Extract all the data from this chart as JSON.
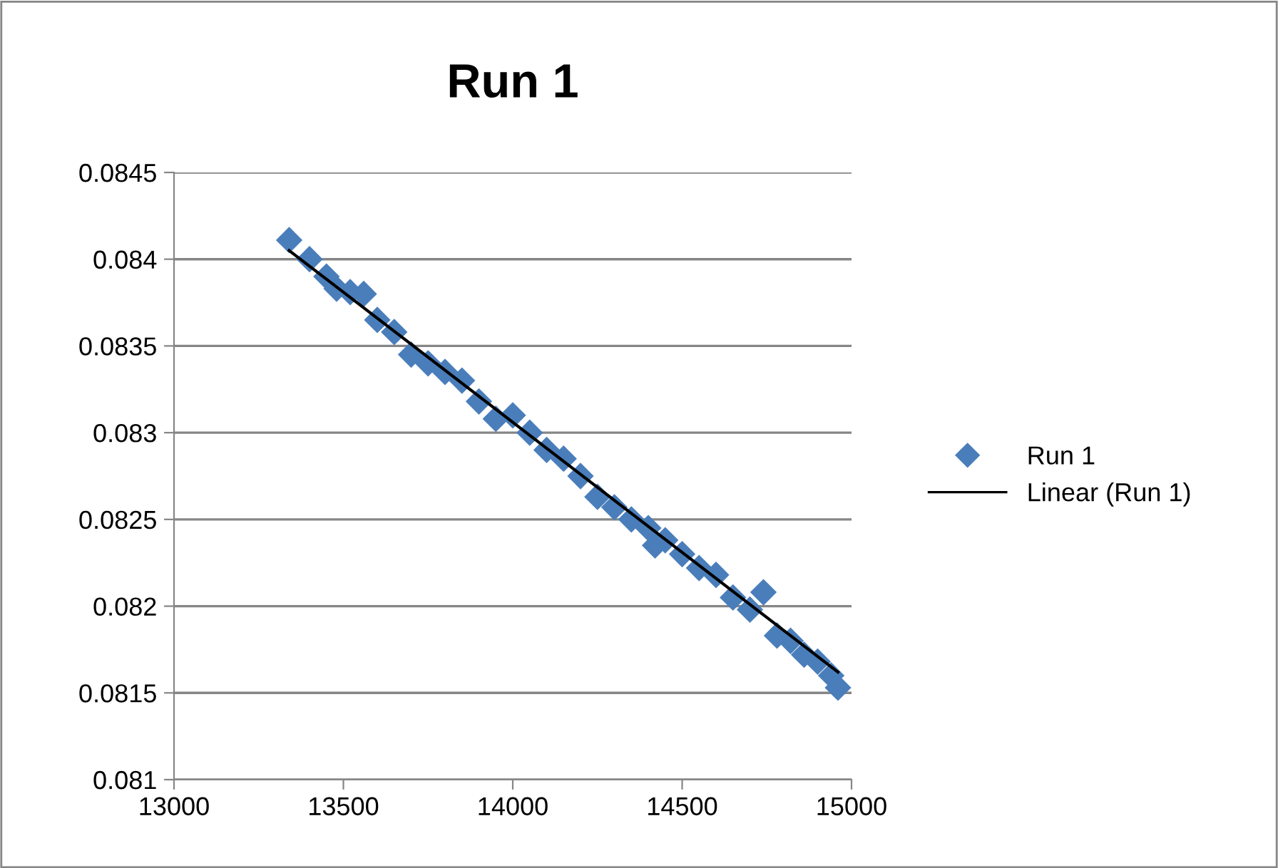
{
  "chart_data": {
    "type": "scatter",
    "title": "Run 1",
    "legend": "right",
    "grid": "y",
    "xlim": [
      13000,
      15000
    ],
    "xticks": [
      13000,
      13500,
      14000,
      14500,
      15000
    ],
    "ylim": [
      0.081,
      0.0845
    ],
    "yticks": [
      0.081,
      0.0815,
      0.082,
      0.0825,
      0.083,
      0.0835,
      0.084,
      0.0845
    ],
    "series": [
      {
        "name": "Run 1",
        "marker": "diamond",
        "color": "#4a7ebb",
        "x": [
          13340,
          13400,
          13450,
          13480,
          13520,
          13560,
          13600,
          13650,
          13700,
          13750,
          13800,
          13850,
          13900,
          13950,
          14000,
          14050,
          14100,
          14150,
          14200,
          14250,
          14300,
          14350,
          14400,
          14420,
          14450,
          14500,
          14550,
          14600,
          14650,
          14700,
          14740,
          14780,
          14820,
          14860,
          14900,
          14940,
          14960
        ],
        "values": [
          0.08411,
          0.084,
          0.0839,
          0.08383,
          0.08381,
          0.0838,
          0.08365,
          0.08358,
          0.08345,
          0.0834,
          0.08335,
          0.0833,
          0.08318,
          0.08308,
          0.0831,
          0.083,
          0.0829,
          0.08285,
          0.08275,
          0.08263,
          0.08257,
          0.0825,
          0.08245,
          0.08235,
          0.08238,
          0.0823,
          0.08222,
          0.08218,
          0.08205,
          0.08198,
          0.08208,
          0.08183,
          0.0818,
          0.08172,
          0.08168,
          0.0816,
          0.08153
        ]
      },
      {
        "name": "Linear (Run 1)",
        "type": "line",
        "color": "#000000",
        "line_style": "solid",
        "x": [
          13340,
          14960
        ],
        "values": [
          0.08405,
          0.08162
        ]
      }
    ]
  }
}
